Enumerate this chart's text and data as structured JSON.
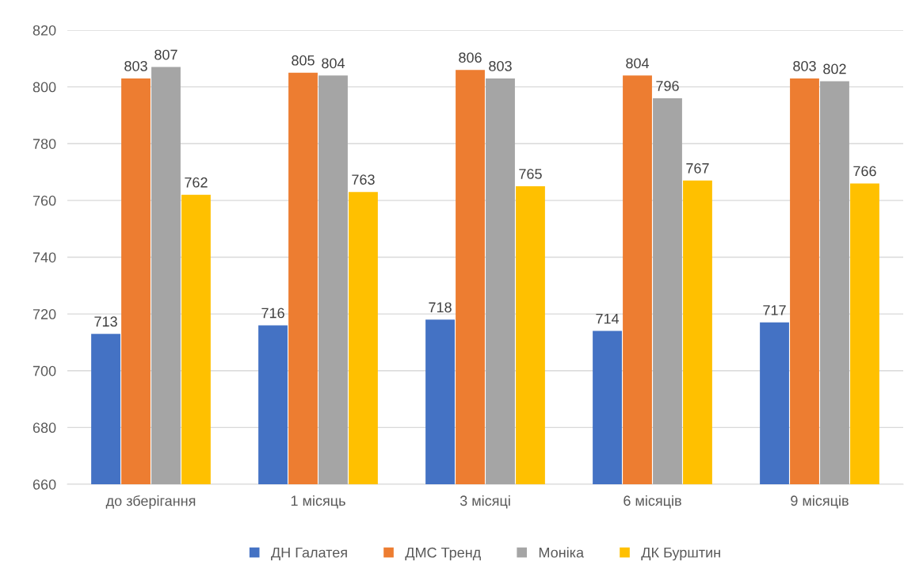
{
  "chart_data": {
    "type": "bar",
    "categories": [
      "до зберігання",
      "1 місяць",
      "3 місяці",
      "6 місяців",
      "9 місяців"
    ],
    "series": [
      {
        "name": "ДН Галатея",
        "color": "#4472c4",
        "values": [
          713,
          716,
          718,
          714,
          717
        ]
      },
      {
        "name": "ДМС Тренд",
        "color": "#ed7d31",
        "values": [
          803,
          805,
          806,
          804,
          803
        ]
      },
      {
        "name": "Моніка",
        "color": "#a5a5a5",
        "values": [
          807,
          804,
          803,
          796,
          802
        ]
      },
      {
        "name": "ДК Бурштин",
        "color": "#ffc000",
        "values": [
          762,
          763,
          765,
          767,
          766
        ]
      }
    ],
    "ylim": [
      660,
      820
    ],
    "yticks": [
      660,
      680,
      700,
      720,
      740,
      760,
      780,
      800,
      820
    ],
    "grid": "y",
    "legend": "bottom",
    "data_labels": true
  }
}
